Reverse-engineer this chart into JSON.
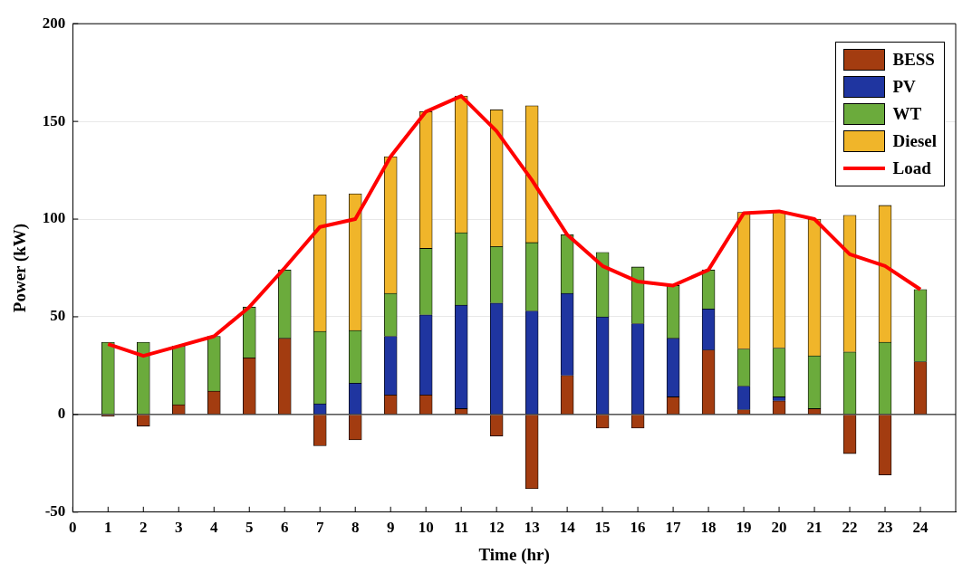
{
  "chart_data": {
    "type": "bar",
    "xlabel": "Time (hr)",
    "ylabel": "Power (kW)",
    "stacked": true,
    "x": [
      1,
      2,
      3,
      4,
      5,
      6,
      7,
      8,
      9,
      10,
      11,
      12,
      13,
      14,
      15,
      16,
      17,
      18,
      19,
      20,
      21,
      22,
      23,
      24
    ],
    "series": [
      {
        "name": "BESS",
        "color": "#a33c10",
        "values": [
          -1,
          -6,
          5,
          12,
          29,
          39,
          -16,
          -13,
          10,
          10,
          3,
          -11,
          -38,
          20,
          -7,
          -7,
          9,
          33,
          2.5,
          7,
          3,
          -20,
          -31,
          27
        ]
      },
      {
        "name": "PV",
        "color": "#1f35a0",
        "values": [
          0,
          0,
          0,
          0,
          0,
          0,
          5.5,
          16,
          30,
          41,
          53,
          57,
          53,
          42,
          50,
          46.5,
          30,
          21,
          12,
          2,
          0,
          0,
          0,
          0
        ]
      },
      {
        "name": "WT",
        "color": "#6bab3c",
        "values": [
          37,
          37,
          30,
          28,
          26,
          35,
          37,
          27,
          22,
          34,
          37,
          29,
          35,
          30,
          33,
          29,
          27,
          20,
          19,
          25,
          27,
          32,
          37,
          37
        ]
      },
      {
        "name": "Diesel",
        "color": "#f0b52a",
        "values": [
          0,
          0,
          0,
          0,
          0,
          0,
          70,
          70,
          70,
          70,
          70,
          70,
          70,
          0,
          0,
          0,
          0,
          0,
          70,
          70,
          70,
          70,
          70,
          0
        ]
      },
      {
        "name": "Load",
        "type": "line",
        "color": "#ff0000",
        "values": [
          36,
          30,
          35,
          40,
          55,
          75,
          96,
          100,
          132,
          155,
          163,
          145,
          120,
          92,
          76,
          68,
          66,
          74,
          103,
          104,
          100,
          82,
          76,
          64
        ]
      }
    ],
    "xlim": [
      0,
      25
    ],
    "xticks": [
      0,
      1,
      2,
      3,
      4,
      5,
      6,
      7,
      8,
      9,
      10,
      11,
      12,
      13,
      14,
      15,
      16,
      17,
      18,
      19,
      20,
      21,
      22,
      23,
      24
    ],
    "ylim": [
      -50,
      200
    ],
    "yticks": [
      -50,
      0,
      50,
      100,
      150,
      200
    ],
    "grid": "y",
    "legend": "top right"
  }
}
